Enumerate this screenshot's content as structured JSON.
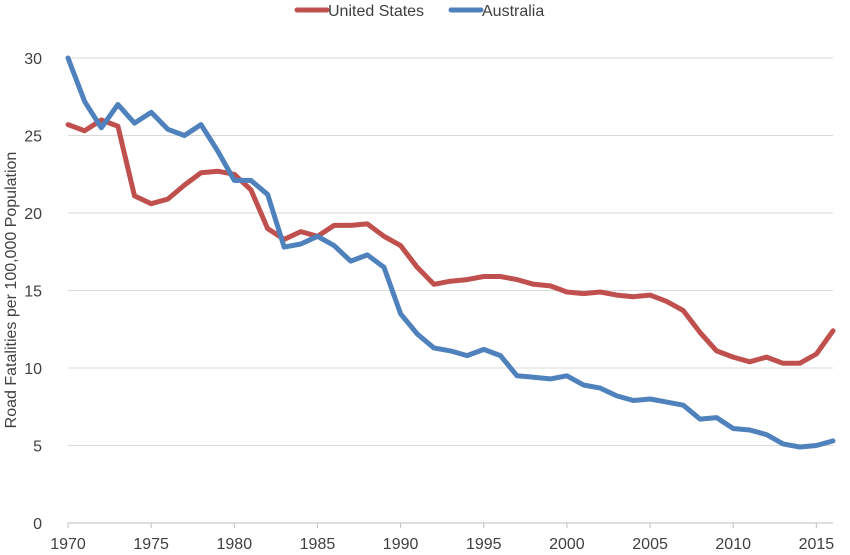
{
  "chart_data": {
    "type": "line",
    "title": "",
    "xlabel": "",
    "ylabel": "Road Fatalities per 100,000 Population",
    "xlim": [
      1970,
      2016
    ],
    "ylim": [
      0,
      30
    ],
    "x_ticks": [
      1970,
      1975,
      1980,
      1985,
      1990,
      1995,
      2000,
      2005,
      2010,
      2015
    ],
    "y_ticks": [
      0,
      5,
      10,
      15,
      20,
      25,
      30
    ],
    "grid": "horizontal",
    "legend_position": "top-center",
    "x": [
      1970,
      1971,
      1972,
      1973,
      1974,
      1975,
      1976,
      1977,
      1978,
      1979,
      1980,
      1981,
      1982,
      1983,
      1984,
      1985,
      1986,
      1987,
      1988,
      1989,
      1990,
      1991,
      1992,
      1993,
      1994,
      1995,
      1996,
      1997,
      1998,
      1999,
      2000,
      2001,
      2002,
      2003,
      2004,
      2005,
      2006,
      2007,
      2008,
      2009,
      2010,
      2011,
      2012,
      2013,
      2014,
      2015,
      2016
    ],
    "series": [
      {
        "name": "United States",
        "color": "#c0504d",
        "values": [
          25.7,
          25.3,
          26.0,
          25.6,
          21.1,
          20.6,
          20.9,
          21.8,
          22.6,
          22.7,
          22.5,
          21.5,
          19.0,
          18.3,
          18.8,
          18.5,
          19.2,
          19.2,
          19.3,
          18.5,
          17.9,
          16.5,
          15.4,
          15.6,
          15.7,
          15.9,
          15.9,
          15.7,
          15.4,
          15.3,
          14.9,
          14.8,
          14.9,
          14.7,
          14.6,
          14.7,
          14.3,
          13.7,
          12.3,
          11.1,
          10.7,
          10.4,
          10.7,
          10.3,
          10.3,
          10.9,
          12.4
        ]
      },
      {
        "name": "Australia",
        "color": "#4f81bd",
        "values": [
          30.0,
          27.2,
          25.5,
          27.0,
          25.8,
          26.5,
          25.4,
          25.0,
          25.7,
          24.0,
          22.1,
          22.1,
          21.2,
          17.8,
          18.0,
          18.5,
          17.9,
          16.9,
          17.3,
          16.5,
          13.5,
          12.2,
          11.3,
          11.1,
          10.8,
          11.2,
          10.8,
          9.5,
          9.4,
          9.3,
          9.5,
          8.9,
          8.7,
          8.2,
          7.9,
          8.0,
          7.8,
          7.6,
          6.7,
          6.8,
          6.1,
          6.0,
          5.7,
          5.1,
          4.9,
          5.0,
          5.3
        ]
      }
    ]
  }
}
